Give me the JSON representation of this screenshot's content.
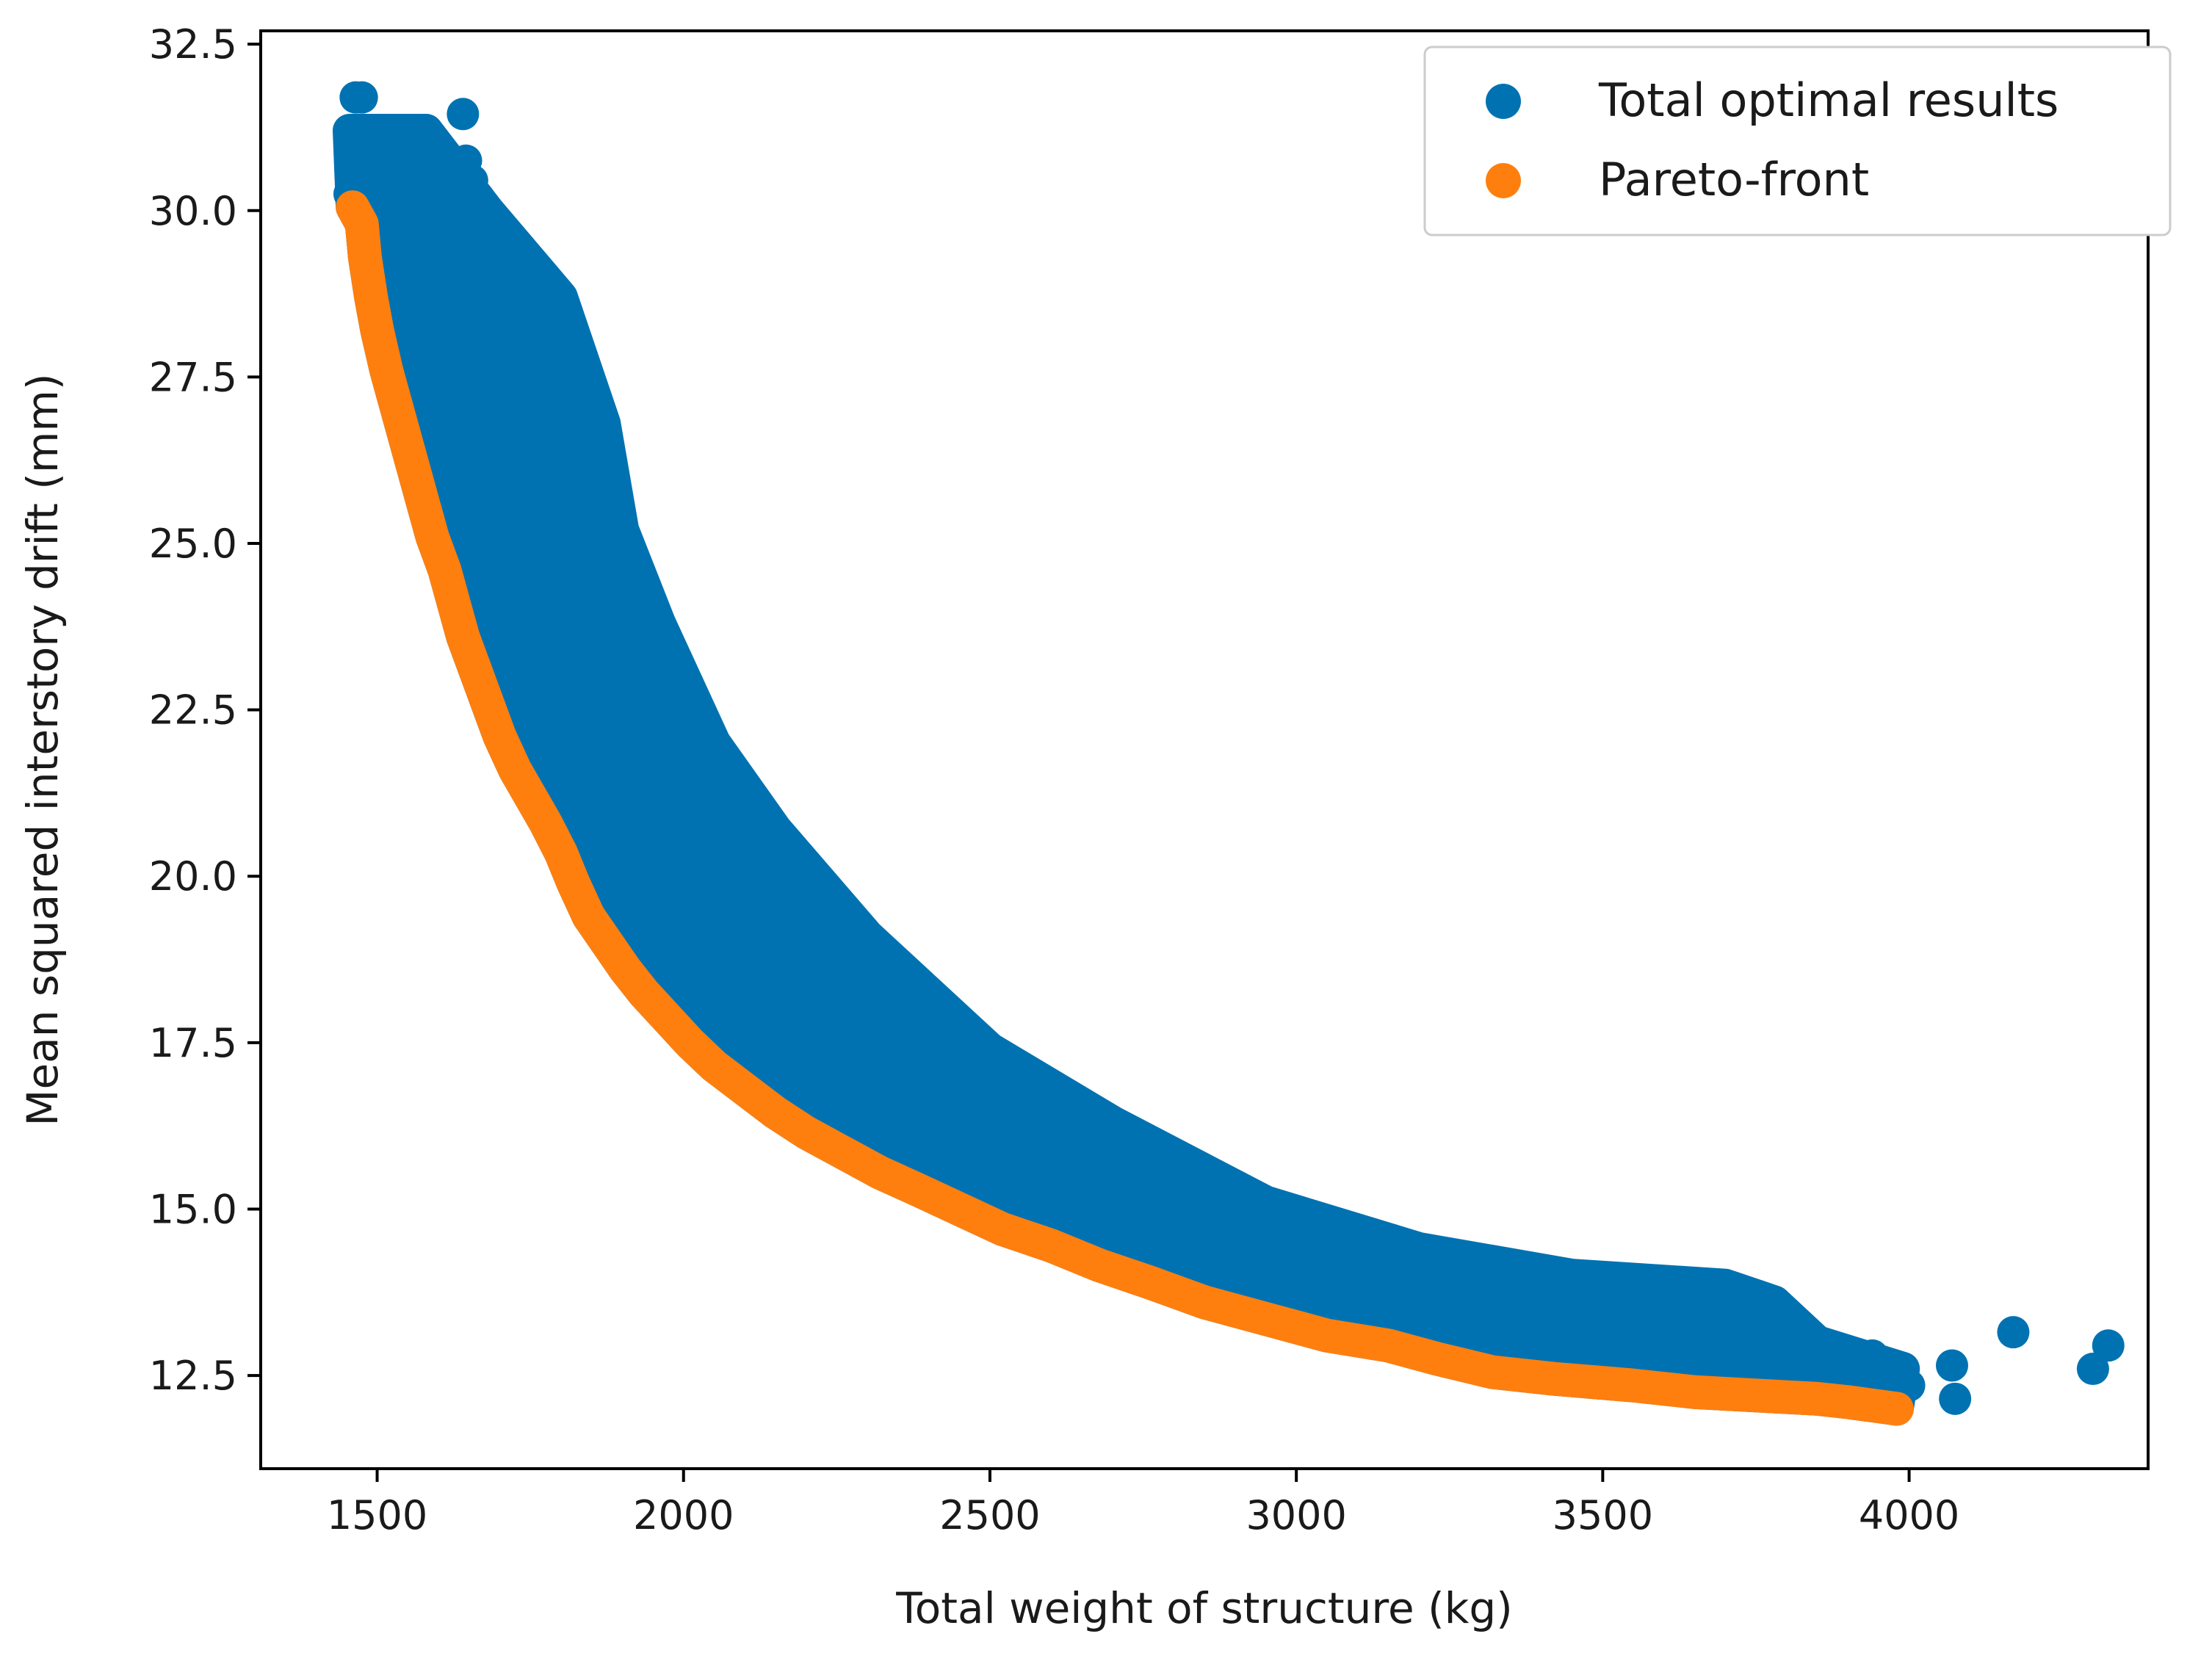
{
  "chart_data": {
    "type": "scatter",
    "title": "",
    "xlabel": "Total weight of structure (kg)",
    "ylabel": "Mean squared interstory drift (mm)",
    "xlim": [
      1310,
      4390
    ],
    "ylim": [
      11.1,
      32.7
    ],
    "xticks": [
      1500,
      2000,
      2500,
      3000,
      3500,
      4000
    ],
    "xtick_labels": [
      "1500",
      "2000",
      "2500",
      "3000",
      "3500",
      "4000"
    ],
    "yticks": [
      12.5,
      15.0,
      17.5,
      20.0,
      22.5,
      25.0,
      27.5,
      30.0,
      32.5
    ],
    "ytick_labels": [
      "12.5",
      "15.0",
      "17.5",
      "20.0",
      "22.5",
      "25.0",
      "27.5",
      "30.0",
      "32.5"
    ],
    "grid": false,
    "legend_position": "top-right",
    "series": [
      {
        "name": "Total optimal results",
        "color": "#0072b2",
        "points": [
          [
            1465,
            31.7
          ],
          [
            1475,
            31.7
          ],
          [
            1490,
            30.9
          ],
          [
            1575,
            30.9
          ],
          [
            1640,
            31.45
          ],
          [
            1645,
            30.75
          ],
          [
            1655,
            30.45
          ],
          [
            1665,
            30.2
          ],
          [
            1455,
            30.25
          ],
          [
            1520,
            30.2
          ],
          [
            1550,
            30.1
          ],
          [
            1600,
            30.0
          ],
          [
            1620,
            29.6
          ],
          [
            1560,
            29.3
          ],
          [
            1690,
            28.9
          ],
          [
            1745,
            28.9
          ],
          [
            1720,
            28.6
          ],
          [
            1630,
            28.5
          ],
          [
            1660,
            28.2
          ],
          [
            1700,
            28.0
          ],
          [
            1770,
            28.1
          ],
          [
            1800,
            27.7
          ],
          [
            1820,
            27.4
          ],
          [
            1790,
            26.9
          ],
          [
            1840,
            26.6
          ],
          [
            1740,
            26.3
          ],
          [
            1700,
            26.0
          ],
          [
            1860,
            25.8
          ],
          [
            1760,
            25.4
          ],
          [
            1870,
            25.3
          ],
          [
            1890,
            25.0
          ],
          [
            1820,
            24.7
          ],
          [
            1800,
            24.1
          ],
          [
            1900,
            24.0
          ],
          [
            1940,
            23.6
          ],
          [
            1830,
            23.6
          ],
          [
            1960,
            23.1
          ],
          [
            1980,
            22.5
          ],
          [
            1850,
            22.8
          ],
          [
            1880,
            21.9
          ],
          [
            2010,
            21.6
          ],
          [
            2030,
            21.0
          ],
          [
            1990,
            20.6
          ],
          [
            2070,
            20.5
          ],
          [
            2100,
            19.9
          ],
          [
            2140,
            19.4
          ],
          [
            2080,
            19.1
          ],
          [
            2190,
            18.7
          ],
          [
            2240,
            18.2
          ],
          [
            2300,
            17.7
          ],
          [
            2200,
            17.5
          ],
          [
            2360,
            17.2
          ],
          [
            2420,
            16.7
          ],
          [
            2300,
            16.6
          ],
          [
            2500,
            16.2
          ],
          [
            2580,
            15.9
          ],
          [
            2450,
            15.8
          ],
          [
            2680,
            15.5
          ],
          [
            2800,
            15.1
          ],
          [
            2650,
            15.0
          ],
          [
            2920,
            14.7
          ],
          [
            3040,
            14.4
          ],
          [
            2850,
            14.3
          ],
          [
            3150,
            14.2
          ],
          [
            3260,
            14.0
          ],
          [
            3050,
            13.9
          ],
          [
            3380,
            13.8
          ],
          [
            3500,
            13.7
          ],
          [
            3250,
            13.5
          ],
          [
            3620,
            13.6
          ],
          [
            3700,
            13.6
          ],
          [
            3760,
            13.55
          ],
          [
            3480,
            13.3
          ],
          [
            3650,
            13.2
          ],
          [
            3700,
            13.0
          ],
          [
            3780,
            12.8
          ],
          [
            3600,
            12.8
          ],
          [
            3880,
            12.75
          ],
          [
            3940,
            12.8
          ],
          [
            3980,
            12.6
          ],
          [
            4000,
            12.35
          ],
          [
            3920,
            12.3
          ],
          [
            4070,
            12.65
          ],
          [
            4075,
            12.15
          ],
          [
            4170,
            13.15
          ],
          [
            4300,
            12.6
          ],
          [
            4325,
            12.95
          ]
        ]
      },
      {
        "name": "Pareto-front",
        "color": "#ff7f0e",
        "points": [
          [
            1460,
            30.05
          ],
          [
            1475,
            29.8
          ],
          [
            1480,
            29.3
          ],
          [
            1490,
            28.7
          ],
          [
            1500,
            28.2
          ],
          [
            1515,
            27.6
          ],
          [
            1530,
            27.1
          ],
          [
            1545,
            26.6
          ],
          [
            1560,
            26.1
          ],
          [
            1575,
            25.6
          ],
          [
            1590,
            25.1
          ],
          [
            1610,
            24.6
          ],
          [
            1625,
            24.1
          ],
          [
            1640,
            23.6
          ],
          [
            1660,
            23.1
          ],
          [
            1680,
            22.6
          ],
          [
            1700,
            22.1
          ],
          [
            1725,
            21.6
          ],
          [
            1750,
            21.2
          ],
          [
            1775,
            20.8
          ],
          [
            1800,
            20.35
          ],
          [
            1820,
            19.9
          ],
          [
            1845,
            19.4
          ],
          [
            1875,
            19.0
          ],
          [
            1905,
            18.6
          ],
          [
            1935,
            18.25
          ],
          [
            1970,
            17.9
          ],
          [
            2010,
            17.5
          ],
          [
            2050,
            17.15
          ],
          [
            2100,
            16.8
          ],
          [
            2150,
            16.45
          ],
          [
            2200,
            16.15
          ],
          [
            2260,
            15.85
          ],
          [
            2320,
            15.55
          ],
          [
            2380,
            15.3
          ],
          [
            2450,
            15.0
          ],
          [
            2520,
            14.7
          ],
          [
            2600,
            14.45
          ],
          [
            2680,
            14.15
          ],
          [
            2760,
            13.9
          ],
          [
            2850,
            13.6
          ],
          [
            2950,
            13.35
          ],
          [
            3050,
            13.1
          ],
          [
            3150,
            12.95
          ],
          [
            3230,
            12.75
          ],
          [
            3320,
            12.55
          ],
          [
            3420,
            12.45
          ],
          [
            3550,
            12.35
          ],
          [
            3650,
            12.25
          ],
          [
            3750,
            12.2
          ],
          [
            3850,
            12.15
          ],
          [
            3900,
            12.1
          ],
          [
            3940,
            12.05
          ],
          [
            3980,
            12.0
          ]
        ]
      }
    ]
  }
}
